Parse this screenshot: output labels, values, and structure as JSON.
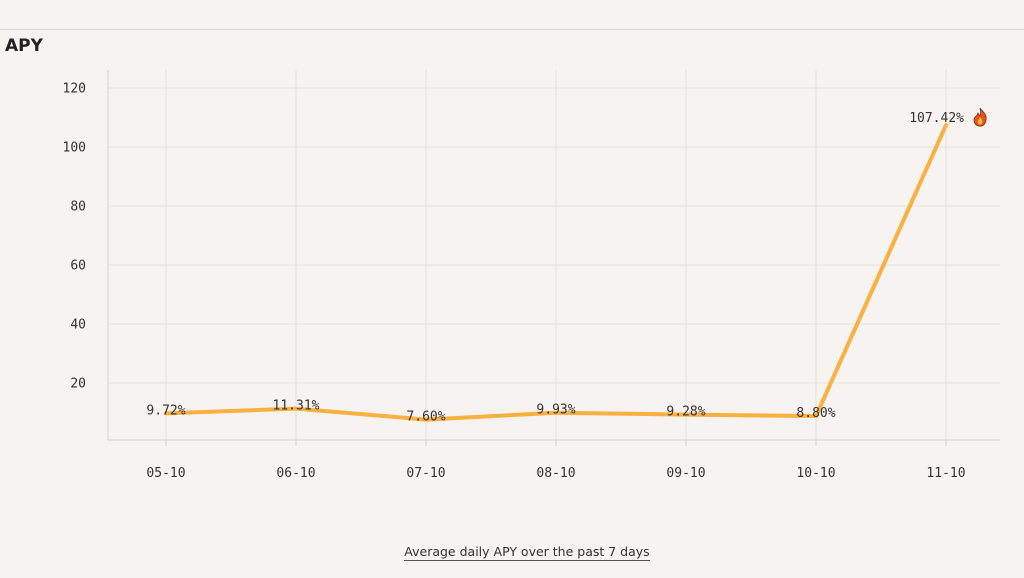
{
  "header": {
    "title": "APY"
  },
  "footer": {
    "caption": "Average daily APY over the past 7 days"
  },
  "colors": {
    "line": "#fbb040",
    "grid": "#e4e0dc",
    "axis": "#d6d2ce",
    "background": "#f7f3f0"
  },
  "highlight": {
    "index": 6,
    "icon": "fire-icon"
  },
  "chart_data": {
    "type": "line",
    "categories": [
      "05-10",
      "06-10",
      "07-10",
      "08-10",
      "09-10",
      "10-10",
      "11-10"
    ],
    "values": [
      9.72,
      11.31,
      7.6,
      9.93,
      9.28,
      8.8,
      107.42
    ],
    "labels": [
      "9.72%",
      "11.31%",
      "7.60%",
      "9.93%",
      "9.28%",
      "8.80%",
      "107.42%"
    ],
    "yticks": [
      20,
      40,
      60,
      80,
      100,
      120
    ],
    "ylim": [
      0,
      120
    ],
    "grid": true
  }
}
